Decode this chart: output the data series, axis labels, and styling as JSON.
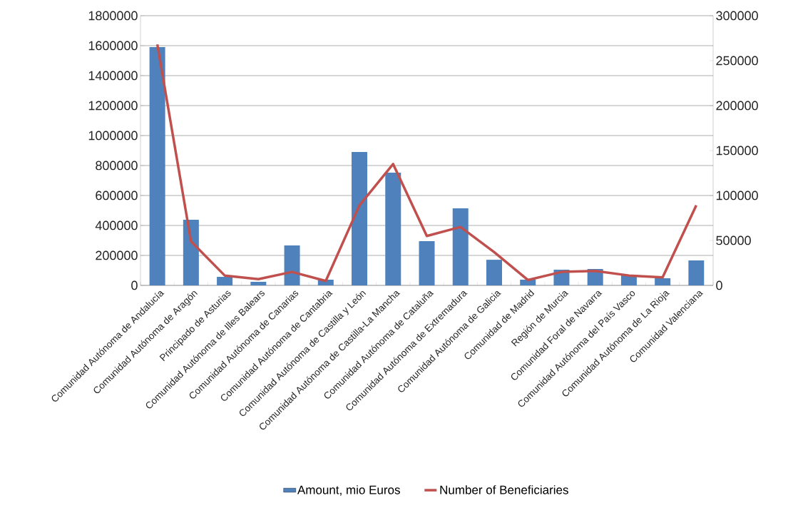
{
  "chart_data": {
    "type": "bar",
    "categories": [
      "Comunidad Autónoma de Andalucía",
      "Comunidad Autónoma de Aragón",
      "Principado de Asturias",
      "Comunidad Autónoma de Illes Balears",
      "Comunidad Autónoma de Canarias",
      "Comunidad Autónoma de Cantabria",
      "Comunidad Autónoma de Castilla y León",
      "Comunidad Autónoma de Castilla-La Mancha",
      "Comunidad Autónoma de Cataluña",
      "Comunidad Autónoma de Extremadura",
      "Comunidad Autónoma de Galicia",
      "Comunidad de Madrid",
      "Región de Murcia",
      "Comunidad Foral de Navarra",
      "Comunidad Autónoma del País Vasco",
      "Comunidad Autónoma de La Rioja",
      "Comunidad Valenciana"
    ],
    "series": [
      {
        "name": "Amount, mio Euros",
        "color": "#4f81bd",
        "values": [
          1590000,
          438000,
          57000,
          24000,
          267000,
          38000,
          890000,
          752000,
          295000,
          514000,
          171000,
          38000,
          105000,
          110000,
          67000,
          48000,
          167000
        ]
      },
      {
        "name": "Number of Beneficiaries",
        "type": "line",
        "axis": "y2",
        "color": "#c0504d",
        "values": [
          268000,
          49000,
          11000,
          7000,
          15000,
          5000,
          89000,
          135000,
          55000,
          65000,
          37000,
          6000,
          15000,
          16000,
          11000,
          9000,
          89000
        ]
      }
    ],
    "ylim": [
      0,
      1800000
    ],
    "yticks": [
      0,
      200000,
      400000,
      600000,
      800000,
      1000000,
      1200000,
      1400000,
      1600000,
      1800000
    ],
    "y2lim": [
      0,
      300000
    ],
    "y2ticks": [
      0,
      50000,
      100000,
      150000,
      200000,
      250000,
      300000
    ],
    "grid": "y",
    "legend": "bottom"
  }
}
